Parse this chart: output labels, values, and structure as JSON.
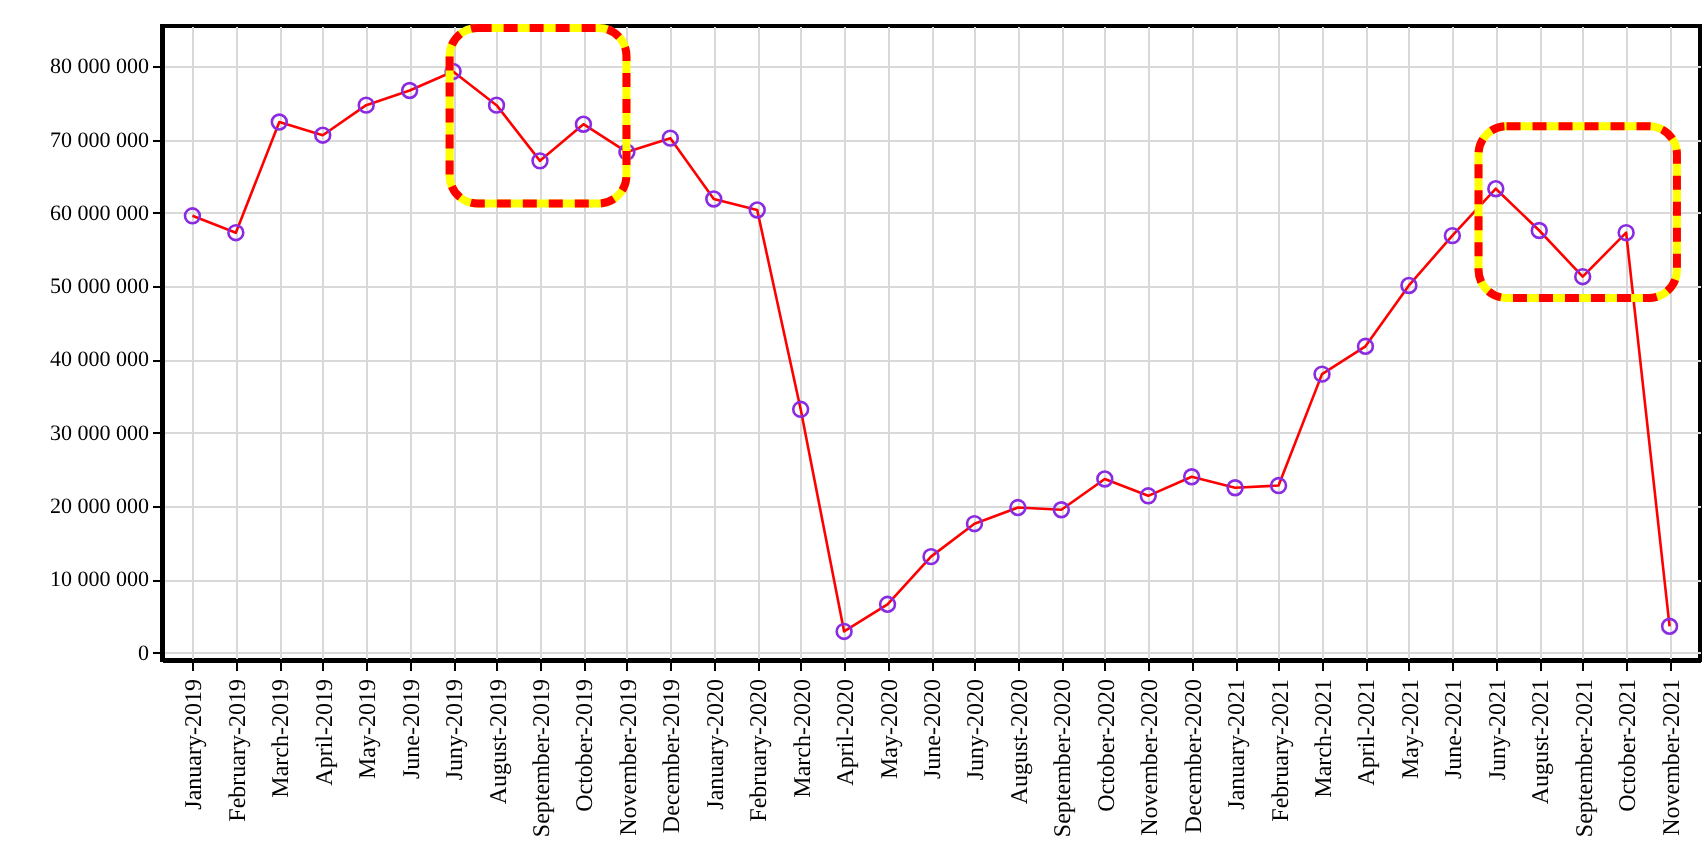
{
  "chart_data": {
    "type": "line",
    "categories": [
      "January-2019",
      "February-2019",
      "March-2019",
      "April-2019",
      "May-2019",
      "June-2019",
      "Juny-2019",
      "August-2019",
      "September-2019",
      "October-2019",
      "November-2019",
      "December-2019",
      "January-2020",
      "February-2020",
      "March-2020",
      "April-2020",
      "May-2020",
      "June-2020",
      "Juny-2020",
      "August-2020",
      "September-2020",
      "October-2020",
      "November-2020",
      "December-2020",
      "January-2021",
      "February-2021",
      "March-2021",
      "April-2021",
      "May-2021",
      "June-2021",
      "Juny-2021",
      "August-2021",
      "September-2021",
      "October-2021",
      "November-2021"
    ],
    "series": [
      {
        "color": "#ff0000",
        "values": [
          59600000,
          57300000,
          72400000,
          70600000,
          74700000,
          76700000,
          79300000,
          74700000,
          67100000,
          72100000,
          68300000,
          70200000,
          61900000,
          60400000,
          33200000,
          2900000,
          6600000,
          13100000,
          17600000,
          19800000,
          19500000,
          23700000,
          21400000,
          24000000,
          22500000,
          22800000,
          38000000,
          41800000,
          50100000,
          56900000,
          63300000,
          57600000,
          51300000,
          57300000,
          3600000
        ]
      }
    ],
    "ylim": [
      -1000000,
      85500000
    ],
    "yticks": [
      0,
      10000000,
      20000000,
      30000000,
      40000000,
      50000000,
      60000000,
      70000000,
      80000000
    ],
    "grid": true,
    "marker": "circle",
    "line_style": "solid"
  }
}
